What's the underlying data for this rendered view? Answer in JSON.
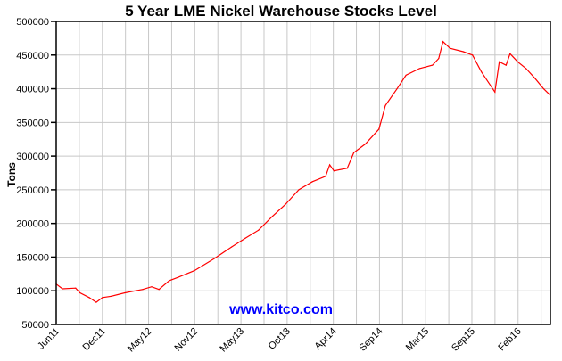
{
  "chart_data": {
    "type": "line",
    "title": "5 Year LME Nickel Warehouse Stocks Level",
    "xlabel": "",
    "ylabel": "Tons",
    "watermark": "www.kitco.com",
    "xlim": [
      "2011-06-01",
      "2016-06-01"
    ],
    "ylim": [
      50000,
      500000
    ],
    "y_ticks": [
      50000,
      100000,
      150000,
      200000,
      250000,
      300000,
      350000,
      400000,
      450000,
      500000
    ],
    "x_tick_labels": [
      "Jun11",
      "Dec11",
      "May12",
      "Nov12",
      "May13",
      "Oct13",
      "Apr14",
      "Sep14",
      "Mar15",
      "Sep15",
      "Feb16"
    ],
    "grid": true,
    "line_color": "#ff0000",
    "watermark_color": "#0000ff",
    "series": [
      {
        "x": [
          "2011-06-01",
          "2011-06-24",
          "2011-08-12",
          "2011-08-28",
          "2011-10-01",
          "2011-10-27",
          "2011-11-19",
          "2011-12-22",
          "2012-02-10",
          "2012-04-16",
          "2012-05-19",
          "2012-06-15",
          "2012-07-23",
          "2012-08-25",
          "2012-10-24",
          "2013-01-06",
          "2013-03-10",
          "2013-04-30",
          "2013-06-18",
          "2013-08-07",
          "2013-09-25",
          "2013-11-14",
          "2014-01-03",
          "2014-02-21",
          "2014-03-08",
          "2014-03-24",
          "2014-05-12",
          "2014-06-05",
          "2014-07-18",
          "2014-09-06",
          "2014-09-30",
          "2014-11-12",
          "2014-12-15",
          "2015-02-03",
          "2015-03-23",
          "2015-04-15",
          "2015-05-01",
          "2015-05-27",
          "2015-07-15",
          "2015-08-18",
          "2015-09-20",
          "2015-11-09",
          "2015-11-25",
          "2015-12-20",
          "2016-01-04",
          "2016-02-01",
          "2016-03-03",
          "2016-04-06",
          "2016-05-07",
          "2016-06-01"
        ],
        "y": [
          110000,
          103000,
          104000,
          97000,
          90000,
          83000,
          90000,
          92000,
          97000,
          102000,
          106000,
          102000,
          115000,
          120000,
          130000,
          148000,
          165000,
          178000,
          190000,
          210000,
          228000,
          250000,
          262000,
          270000,
          287000,
          278000,
          282000,
          305000,
          318000,
          340000,
          375000,
          400000,
          420000,
          430000,
          435000,
          445000,
          470000,
          460000,
          455000,
          450000,
          425000,
          395000,
          440000,
          435000,
          452000,
          440000,
          430000,
          415000,
          400000,
          390000
        ]
      }
    ]
  }
}
